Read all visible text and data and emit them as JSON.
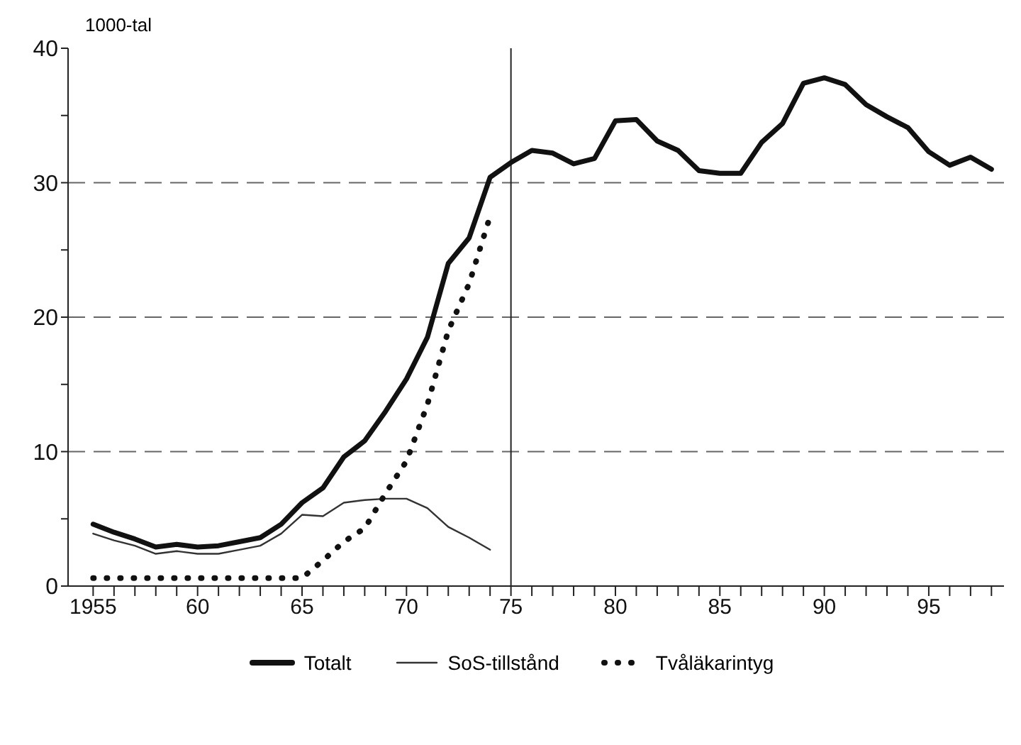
{
  "chart_data": {
    "type": "line",
    "ylabel": "1000-tal",
    "x": [
      1955,
      1956,
      1957,
      1958,
      1959,
      1960,
      1961,
      1962,
      1963,
      1964,
      1965,
      1966,
      1967,
      1968,
      1969,
      1970,
      1971,
      1972,
      1973,
      1974,
      1975,
      1976,
      1977,
      1978,
      1979,
      1980,
      1981,
      1982,
      1983,
      1984,
      1985,
      1986,
      1987,
      1988,
      1989,
      1990,
      1991,
      1992,
      1993,
      1994,
      1995,
      1996,
      1997,
      1998
    ],
    "series": [
      {
        "name": "Totalt",
        "color": "#111111",
        "line_style": "solid",
        "values": [
          4.6,
          4.0,
          3.5,
          2.9,
          3.1,
          2.9,
          3.0,
          3.3,
          3.6,
          4.6,
          6.2,
          7.3,
          9.6,
          10.8,
          13.0,
          15.4,
          18.5,
          24.0,
          25.9,
          30.4,
          31.5,
          32.4,
          32.2,
          31.4,
          31.8,
          34.6,
          34.7,
          33.1,
          32.4,
          30.9,
          30.7,
          30.7,
          33.0,
          34.4,
          37.4,
          37.8,
          37.3,
          35.8,
          34.9,
          34.1,
          32.3,
          31.3,
          31.9,
          31.0
        ]
      },
      {
        "name": "SoS-tillstånd",
        "color": "#333333",
        "line_style": "solid",
        "values": [
          3.9,
          3.4,
          3.0,
          2.4,
          2.6,
          2.4,
          2.4,
          2.7,
          3.0,
          3.9,
          5.3,
          5.2,
          6.2,
          6.4,
          6.5,
          6.5,
          5.8,
          4.4,
          3.6,
          2.7,
          null,
          null,
          null,
          null,
          null,
          null,
          null,
          null,
          null,
          null,
          null,
          null,
          null,
          null,
          null,
          null,
          null,
          null,
          null,
          null,
          null,
          null,
          null,
          null
        ]
      },
      {
        "name": "Tvåläkarintyg",
        "color": "#111111",
        "line_style": "dotted",
        "values": [
          0.6,
          0.6,
          0.6,
          0.6,
          0.6,
          0.6,
          0.6,
          0.6,
          0.6,
          0.6,
          0.6,
          1.9,
          3.3,
          4.3,
          6.9,
          9.3,
          13.5,
          19.0,
          22.5,
          27.5,
          null,
          null,
          null,
          null,
          null,
          null,
          null,
          null,
          null,
          null,
          null,
          null,
          null,
          null,
          null,
          null,
          null,
          null,
          null,
          null,
          null,
          null,
          null,
          null
        ]
      }
    ],
    "xlim": [
      1953.8,
      1998.6
    ],
    "xticks": [
      {
        "value": 1955,
        "label": "1955"
      },
      {
        "value": 1956,
        "label": null
      },
      {
        "value": 1957,
        "label": null
      },
      {
        "value": 1958,
        "label": null
      },
      {
        "value": 1959,
        "label": null
      },
      {
        "value": 1960,
        "label": "60"
      },
      {
        "value": 1961,
        "label": null
      },
      {
        "value": 1962,
        "label": null
      },
      {
        "value": 1963,
        "label": null
      },
      {
        "value": 1964,
        "label": null
      },
      {
        "value": 1965,
        "label": "65"
      },
      {
        "value": 1966,
        "label": null
      },
      {
        "value": 1967,
        "label": null
      },
      {
        "value": 1968,
        "label": null
      },
      {
        "value": 1969,
        "label": null
      },
      {
        "value": 1970,
        "label": "70"
      },
      {
        "value": 1971,
        "label": null
      },
      {
        "value": 1972,
        "label": null
      },
      {
        "value": 1973,
        "label": null
      },
      {
        "value": 1974,
        "label": null
      },
      {
        "value": 1975,
        "label": "75"
      },
      {
        "value": 1976,
        "label": null
      },
      {
        "value": 1977,
        "label": null
      },
      {
        "value": 1978,
        "label": null
      },
      {
        "value": 1979,
        "label": null
      },
      {
        "value": 1980,
        "label": "80"
      },
      {
        "value": 1981,
        "label": null
      },
      {
        "value": 1982,
        "label": null
      },
      {
        "value": 1983,
        "label": null
      },
      {
        "value": 1984,
        "label": null
      },
      {
        "value": 1985,
        "label": "85"
      },
      {
        "value": 1986,
        "label": null
      },
      {
        "value": 1987,
        "label": null
      },
      {
        "value": 1988,
        "label": null
      },
      {
        "value": 1989,
        "label": null
      },
      {
        "value": 1990,
        "label": "90"
      },
      {
        "value": 1991,
        "label": null
      },
      {
        "value": 1992,
        "label": null
      },
      {
        "value": 1993,
        "label": null
      },
      {
        "value": 1994,
        "label": null
      },
      {
        "value": 1995,
        "label": "95"
      },
      {
        "value": 1996,
        "label": null
      },
      {
        "value": 1997,
        "label": null
      },
      {
        "value": 1998,
        "label": null
      }
    ],
    "ylim": [
      0,
      40
    ],
    "yticks": [
      0,
      {
        "value": 5,
        "label": null
      },
      10,
      {
        "value": 15,
        "label": null
      },
      20,
      {
        "value": 25,
        "label": null
      },
      30,
      {
        "value": 35,
        "label": null
      },
      40
    ],
    "grid": "y",
    "ref_lines": [
      {
        "axis": "x",
        "value": 1975,
        "label": null,
        "color": "#222222",
        "line_style": "solid"
      }
    ],
    "legend": "bottom",
    "marker": "none"
  }
}
